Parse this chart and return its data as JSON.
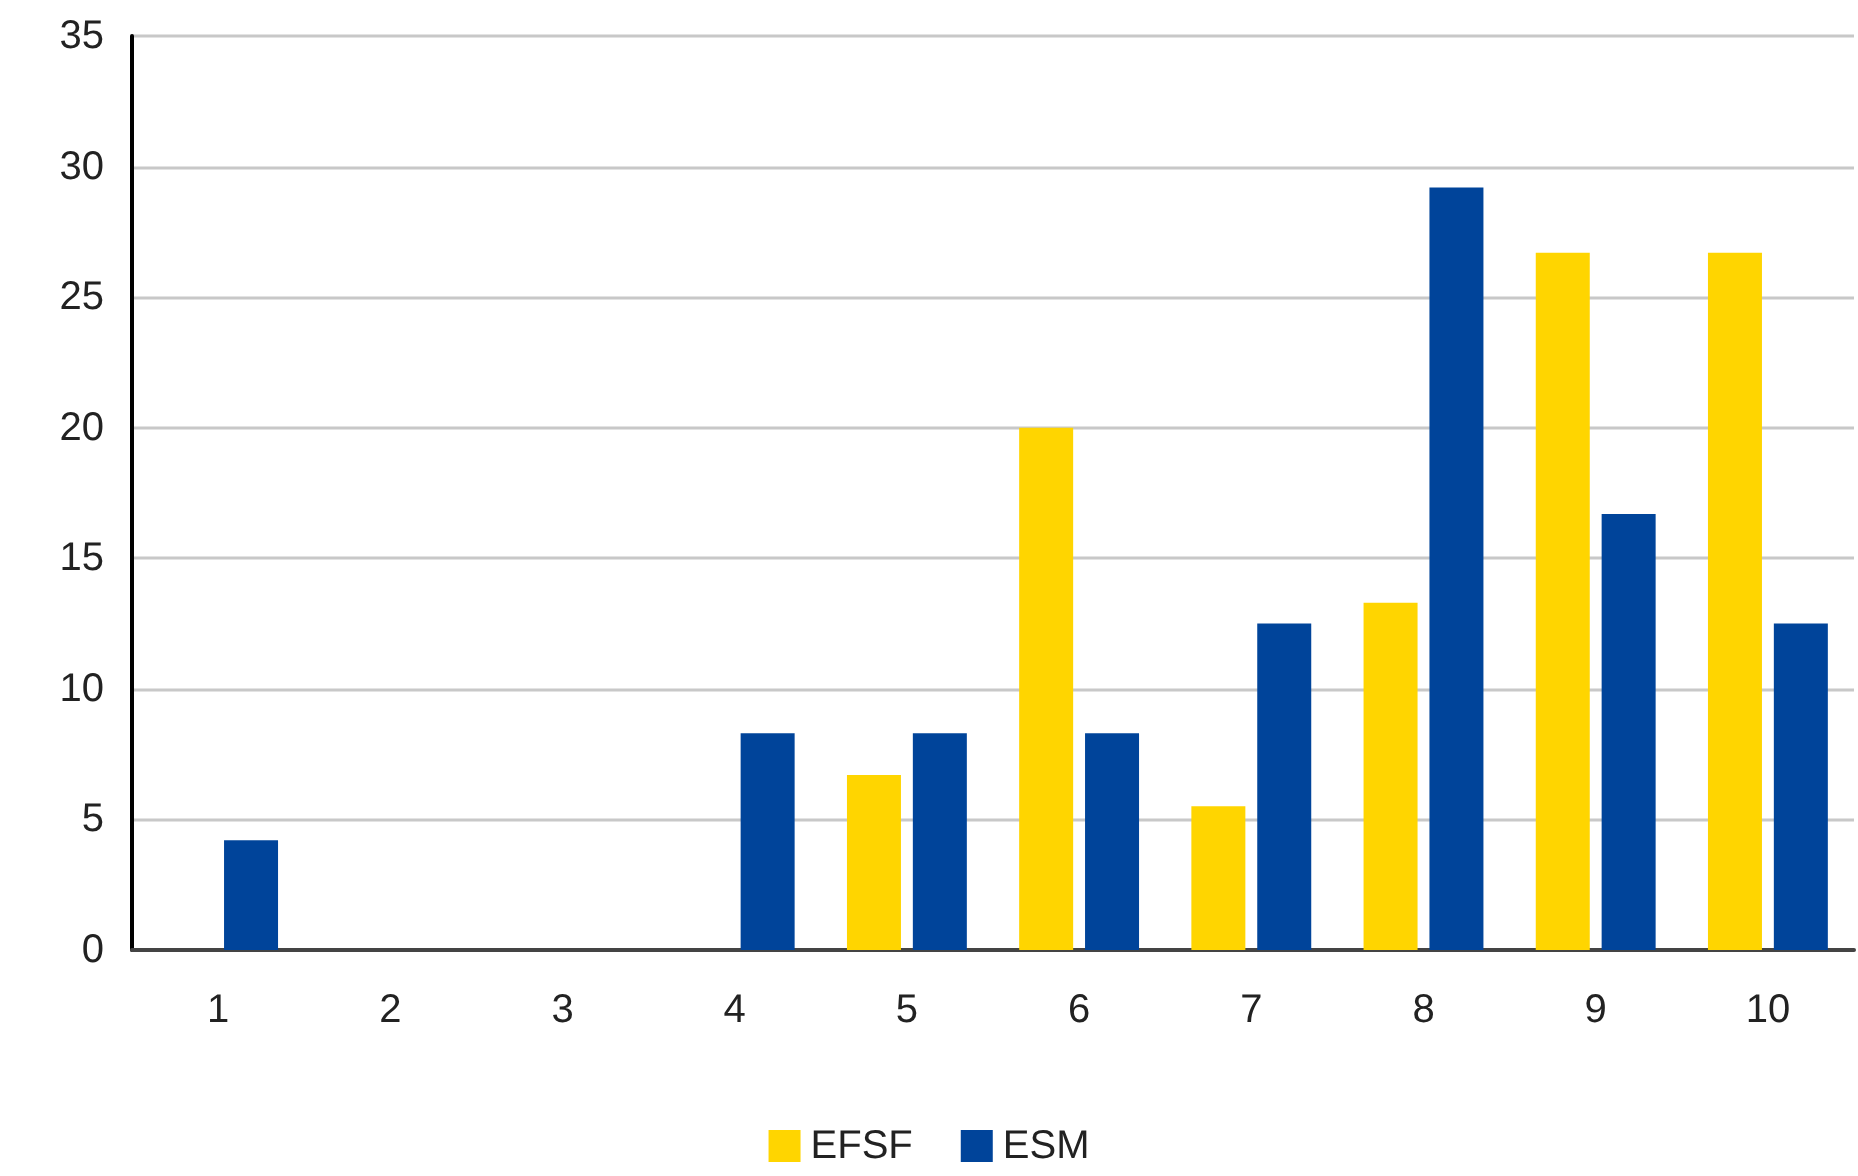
{
  "chart_data": {
    "type": "bar",
    "categories": [
      "1",
      "2",
      "3",
      "4",
      "5",
      "6",
      "7",
      "8",
      "9",
      "10"
    ],
    "series": [
      {
        "name": "EFSF",
        "color": "#ffd500",
        "values": [
          0,
          0,
          0,
          0,
          6.7,
          20,
          5.5,
          13.3,
          26.7,
          26.7
        ]
      },
      {
        "name": "ESM",
        "color": "#00449a",
        "values": [
          4.2,
          0,
          0,
          8.3,
          8.3,
          8.3,
          12.5,
          29.2,
          16.7,
          12.5
        ]
      }
    ],
    "ylim": [
      0,
      35
    ],
    "yticks": [
      0,
      5,
      10,
      15,
      20,
      25,
      30,
      35
    ],
    "grid": "y",
    "legend": "bottom"
  }
}
